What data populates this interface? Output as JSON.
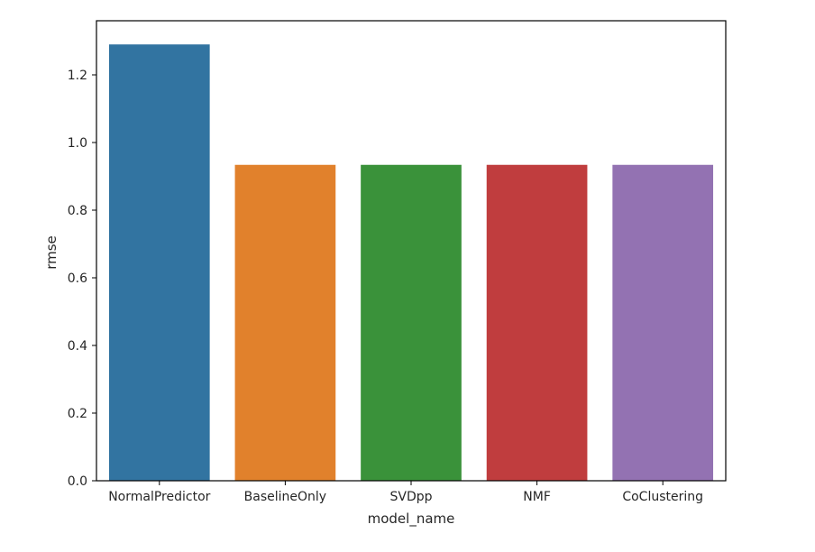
{
  "chart_data": {
    "type": "bar",
    "xlabel": "model_name",
    "ylabel": "rmse",
    "categories": [
      "NormalPredictor",
      "BaselineOnly",
      "SVDpp",
      "NMF",
      "CoClustering"
    ],
    "values": [
      1.29,
      0.934,
      0.934,
      0.934,
      0.934
    ],
    "colors": [
      "#3274a1",
      "#e1812c",
      "#3a923a",
      "#c03d3e",
      "#9372b2"
    ],
    "ylim": [
      0,
      1.36
    ],
    "yticks": [
      0.0,
      0.2,
      0.4,
      0.6,
      0.8,
      1.0,
      1.2
    ],
    "ytick_labels": [
      "0.0",
      "0.2",
      "0.4",
      "0.6",
      "0.8",
      "1.0",
      "1.2"
    ],
    "grid": false,
    "legend": "none"
  }
}
